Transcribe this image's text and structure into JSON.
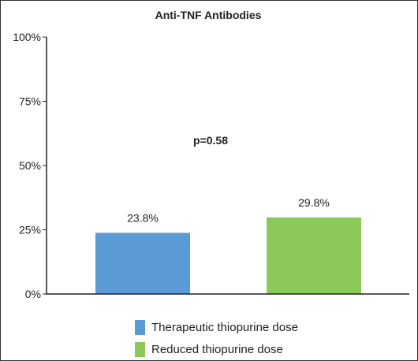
{
  "chart_data": {
    "type": "bar",
    "title": "Anti-TNF Antibodies",
    "categories": [
      "Therapeutic thiopurine dose",
      "Reduced thiopurine dose"
    ],
    "values": [
      23.8,
      29.8
    ],
    "value_labels": [
      "23.8%",
      "29.8%"
    ],
    "colors": [
      "#5b9bd5",
      "#8dc85a"
    ],
    "ylim": [
      0,
      100
    ],
    "yticks": [
      0,
      25,
      50,
      75,
      100
    ],
    "ytick_labels": [
      "0%",
      "25%",
      "50%",
      "75%",
      "100%"
    ],
    "xlabel": "",
    "ylabel": "",
    "annotation": "p=0.58",
    "grid": false,
    "legend_position": "bottom"
  }
}
